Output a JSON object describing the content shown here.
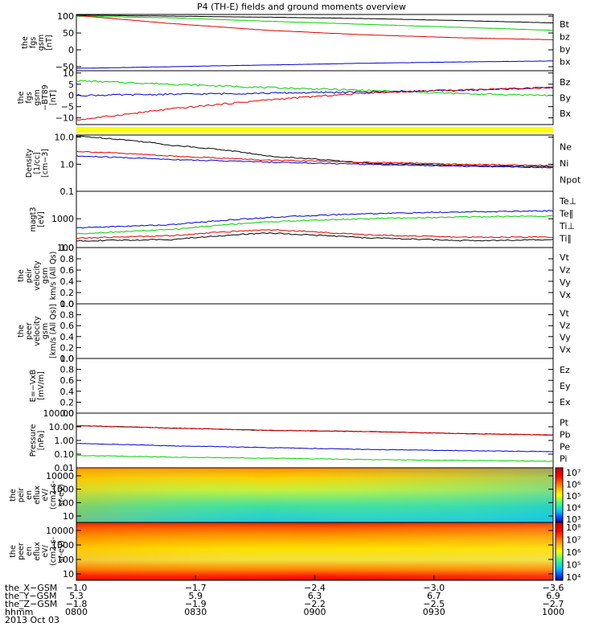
{
  "title": "P4 (TH-E) fields and ground moments overview",
  "colors": {
    "black": "#000000",
    "red": "#e00000",
    "green": "#00d000",
    "blue": "#0000d0",
    "yellow": "#ffff00"
  },
  "chart_data": [
    {
      "type": "line",
      "name": "the_fgs_gsm",
      "ylabel": [
        "the",
        "fgs",
        "gsm",
        "[nT]"
      ],
      "yticks": [
        "100",
        "50",
        "0",
        "−50"
      ],
      "ylim": [
        -62,
        105
      ],
      "legend": [
        {
          "label": "Bt",
          "color": "black"
        },
        {
          "label": "bz",
          "color": "red"
        },
        {
          "label": "by",
          "color": "green"
        },
        {
          "label": "bx",
          "color": "blue"
        }
      ],
      "series": [
        {
          "label": "Bt",
          "color": "black",
          "x": [
            0,
            0.2,
            0.4,
            0.6,
            0.8,
            1
          ],
          "y": [
            103,
            100,
            97,
            93,
            87,
            80
          ]
        },
        {
          "label": "by",
          "color": "green",
          "x": [
            0,
            0.2,
            0.4,
            0.6,
            0.8,
            1
          ],
          "y": [
            100,
            95,
            85,
            76,
            67,
            58
          ]
        },
        {
          "label": "bz",
          "color": "red",
          "x": [
            0,
            0.2,
            0.4,
            0.6,
            0.8,
            1
          ],
          "y": [
            102,
            78,
            58,
            45,
            36,
            30
          ]
        },
        {
          "label": "bx",
          "color": "blue",
          "x": [
            0,
            0.2,
            0.4,
            0.6,
            0.8,
            1
          ],
          "y": [
            -55,
            -50,
            -45,
            -40,
            -36,
            -33
          ]
        }
      ]
    },
    {
      "type": "line",
      "name": "the_fgs_gsm_dtrend",
      "ylabel": [
        "the",
        "fgs",
        "gsm",
        "−BT89",
        "[nT]"
      ],
      "yticks": [
        "10",
        "5",
        "0",
        "−5",
        "−10"
      ],
      "ylim": [
        -13,
        11
      ],
      "legend": [
        {
          "label": "Bz",
          "color": "red"
        },
        {
          "label": "By",
          "color": "green"
        },
        {
          "label": "Bx",
          "color": "blue"
        }
      ],
      "series": [
        {
          "label": "By",
          "color": "green",
          "x": [
            0,
            0.2,
            0.4,
            0.6,
            0.8,
            1
          ],
          "y": [
            6.5,
            5,
            3.5,
            2.3,
            0.8,
            0
          ]
        },
        {
          "label": "Bx",
          "color": "blue",
          "x": [
            0,
            0.2,
            0.4,
            0.6,
            0.8,
            1
          ],
          "y": [
            0,
            0.5,
            1,
            1.5,
            2.2,
            3.5
          ]
        },
        {
          "label": "Bz",
          "color": "red",
          "x": [
            0,
            0.2,
            0.4,
            0.6,
            0.8,
            1
          ],
          "y": [
            -11,
            -6,
            -2,
            1,
            2.5,
            3.5
          ]
        }
      ]
    },
    {
      "type": "line",
      "name": "density",
      "ylog": true,
      "ylabel": [
        "Density",
        "[1/cc]",
        "[cm−3]"
      ],
      "yticks": [
        "10.0",
        "1.0",
        "0.1"
      ],
      "ylim": [
        0.1,
        12
      ],
      "legend": [
        {
          "label": "Ne",
          "color": "red"
        },
        {
          "label": "Ni",
          "color": "black"
        },
        {
          "label": "Npot",
          "color": "blue"
        }
      ],
      "series": [
        {
          "label": "Ni",
          "color": "black",
          "x": [
            0,
            0.2,
            0.4,
            0.6,
            0.8,
            1
          ],
          "y": [
            11,
            5,
            2,
            1.1,
            0.9,
            0.8
          ]
        },
        {
          "label": "Ne",
          "color": "red",
          "x": [
            0,
            0.2,
            0.4,
            0.6,
            0.8,
            1
          ],
          "y": [
            3,
            2,
            1.4,
            1.2,
            1.0,
            0.9
          ]
        },
        {
          "label": "Npot",
          "color": "blue",
          "x": [
            0,
            0.2,
            0.4,
            0.6,
            0.8,
            1
          ],
          "y": [
            2,
            1.5,
            1.2,
            1.0,
            0.85,
            0.75
          ]
        }
      ]
    },
    {
      "type": "line",
      "name": "temperature",
      "ylog": true,
      "ylabel": [
        "magt3",
        "[eV]"
      ],
      "yticks": [
        "1000",
        "100"
      ],
      "ylim": [
        100,
        9000
      ],
      "legend": [
        {
          "label": "Te⊥",
          "color": "red"
        },
        {
          "label": "Te∥",
          "color": "black"
        },
        {
          "label": "Ti⊥",
          "color": "blue"
        },
        {
          "label": "Ti∥",
          "color": "green"
        }
      ],
      "series": [
        {
          "label": "Ti⊥",
          "color": "blue",
          "x": [
            0,
            0.2,
            0.4,
            0.6,
            0.8,
            1
          ],
          "y": [
            480,
            620,
            1100,
            1500,
            1700,
            1900
          ]
        },
        {
          "label": "Ti∥",
          "color": "green",
          "x": [
            0,
            0.2,
            0.4,
            0.6,
            0.8,
            1
          ],
          "y": [
            300,
            420,
            780,
            1000,
            1150,
            1250
          ]
        },
        {
          "label": "Te⊥",
          "color": "red",
          "x": [
            0,
            0.2,
            0.4,
            0.6,
            0.8,
            1
          ],
          "y": [
            210,
            260,
            420,
            280,
            230,
            230
          ]
        },
        {
          "label": "Te∥",
          "color": "black",
          "x": [
            0,
            0.2,
            0.4,
            0.6,
            0.8,
            1
          ],
          "y": [
            170,
            190,
            320,
            220,
            175,
            185
          ]
        }
      ]
    },
    {
      "type": "line",
      "name": "peir_velocity",
      "ylabel": [
        "the",
        "peir",
        "velocity",
        "gsm",
        "km/s (All Qs)"
      ],
      "yticks": [
        "1.0",
        "0.8",
        "0.6",
        "0.4",
        "0.2",
        "0.0"
      ],
      "ylim": [
        0,
        1
      ],
      "legend": [
        {
          "label": "Vt",
          "color": "black"
        },
        {
          "label": "Vz",
          "color": "red"
        },
        {
          "label": "Vy",
          "color": "green"
        },
        {
          "label": "Vx",
          "color": "blue"
        }
      ],
      "series": []
    },
    {
      "type": "line",
      "name": "peer_velocity",
      "ylabel": [
        "the",
        "peer",
        "velocity",
        "gsm",
        "[km/s (All Qs)]"
      ],
      "yticks": [
        "1.0",
        "0.8",
        "0.6",
        "0.4",
        "0.2",
        "0.0"
      ],
      "ylim": [
        0,
        1
      ],
      "legend": [
        {
          "label": "Vt",
          "color": "black"
        },
        {
          "label": "Vz",
          "color": "red"
        },
        {
          "label": "Vy",
          "color": "green"
        },
        {
          "label": "Vx",
          "color": "blue"
        }
      ],
      "series": []
    },
    {
      "type": "line",
      "name": "efield",
      "ylabel": [
        "E=−VxB",
        "[mV/m]"
      ],
      "yticks": [
        "1.0",
        "0.8",
        "0.6",
        "0.4",
        "0.2",
        "0.0"
      ],
      "ylim": [
        0,
        1
      ],
      "legend": [
        {
          "label": "Ez",
          "color": "red"
        },
        {
          "label": "Ey",
          "color": "green"
        },
        {
          "label": "Ex",
          "color": "blue"
        }
      ],
      "series": []
    },
    {
      "type": "line",
      "name": "pressure",
      "ylog": true,
      "ylabel": [
        "Pressure",
        "[nPa]"
      ],
      "yticks": [
        "100.00",
        "10.00",
        "1.00",
        "0.10",
        "0.01"
      ],
      "ylim": [
        0.01,
        100
      ],
      "legend": [
        {
          "label": "Pt",
          "color": "black"
        },
        {
          "label": "Pb",
          "color": "red"
        },
        {
          "label": "Pe",
          "color": "green"
        },
        {
          "label": "Pi",
          "color": "blue"
        }
      ],
      "series": [
        {
          "label": "Pt",
          "color": "black",
          "x": [
            0,
            0.2,
            0.4,
            0.6,
            0.8,
            1
          ],
          "y": [
            12,
            8,
            5.5,
            4.5,
            3.2,
            2.5
          ]
        },
        {
          "label": "Pb",
          "color": "red",
          "x": [
            0,
            0.2,
            0.4,
            0.6,
            0.8,
            1
          ],
          "y": [
            12,
            8,
            5.5,
            4.5,
            3.2,
            2.5
          ]
        },
        {
          "label": "Pi",
          "color": "blue",
          "x": [
            0,
            0.2,
            0.4,
            0.6,
            0.8,
            1
          ],
          "y": [
            0.6,
            0.4,
            0.3,
            0.22,
            0.18,
            0.15
          ]
        },
        {
          "label": "Pe",
          "color": "green",
          "x": [
            0,
            0.2,
            0.4,
            0.6,
            0.8,
            1
          ],
          "y": [
            0.08,
            0.06,
            0.05,
            0.04,
            0.035,
            0.03
          ]
        }
      ]
    },
    {
      "type": "heatmap",
      "name": "peir_en_eflux",
      "ylabel": [
        "the",
        "peir",
        "en",
        "eflux",
        "eV/",
        "(cm2-s-",
        "sr-eV)"
      ],
      "yticks": [
        "10000",
        "1000",
        "100",
        "10"
      ],
      "colorbar": [
        "10⁷",
        "10⁶",
        "10⁵",
        "10⁴",
        "10³"
      ]
    },
    {
      "type": "heatmap",
      "name": "peer_en_eflux",
      "ylabel": [
        "the",
        "peer",
        "en",
        "eflux",
        "eV/",
        "(cm2-s-",
        "sr-eV)"
      ],
      "yticks": [
        "10000",
        "1000",
        "100",
        "10"
      ],
      "colorbar": [
        "10⁸",
        "10⁷",
        "10⁶",
        "10⁵",
        "10⁴"
      ]
    }
  ],
  "xaxis": {
    "rows": [
      {
        "label": "the_X−GSM",
        "values": [
          "−1.0",
          "−1.7",
          "−2.4",
          "−3.0",
          "−3.6"
        ]
      },
      {
        "label": "the_Y−GSM",
        "values": [
          "5.3",
          "5.9",
          "6.3",
          "6.7",
          "6.9"
        ]
      },
      {
        "label": "the_Z−GSM",
        "values": [
          "−1.8",
          "−1.9",
          "−2.2",
          "−2.5",
          "−2.7"
        ]
      },
      {
        "label": "hhmm",
        "values": [
          "0800",
          "0830",
          "0900",
          "0930",
          "1000"
        ]
      }
    ],
    "date": "2013 Oct 03"
  }
}
